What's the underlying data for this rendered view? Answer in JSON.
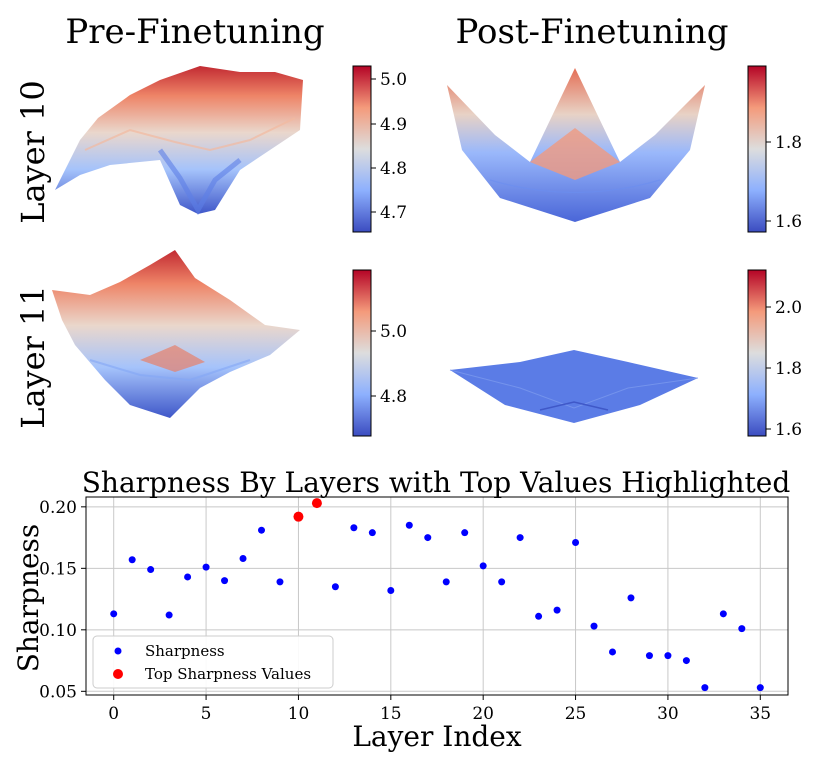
{
  "top": {
    "col_titles": [
      "Pre-Finetuning",
      "Post-Finetuning"
    ],
    "row_labels": [
      "Layer 10",
      "Layer 11"
    ],
    "colorbars": [
      {
        "ticks": [
          "5.0",
          "4.9",
          "4.8",
          "4.7"
        ]
      },
      {
        "ticks": [
          "1.8",
          "1.6"
        ]
      },
      {
        "ticks": [
          "5.0",
          "4.8"
        ]
      },
      {
        "ticks": [
          "2.0",
          "1.8",
          "1.6"
        ]
      }
    ],
    "colors": {
      "low": "#3b4cc0",
      "mid": "#dddddd",
      "high": "#b40426"
    }
  },
  "chart_data": {
    "type": "scatter",
    "title": "Sharpness By Layers with Top Values Highlighted",
    "xlabel": "Layer Index",
    "ylabel": "Sharpness",
    "xlim": [
      -1.5,
      36.5
    ],
    "ylim": [
      0.047,
      0.208
    ],
    "xticks": [
      0,
      5,
      10,
      15,
      20,
      25,
      30,
      35
    ],
    "yticks": [
      0.05,
      0.1,
      0.15,
      0.2
    ],
    "ytick_labels": [
      "0.05",
      "0.10",
      "0.15",
      "0.20"
    ],
    "grid": true,
    "legend_position": "lower-left",
    "series": [
      {
        "name": "Sharpness",
        "color": "#0000ff",
        "x": [
          0,
          1,
          2,
          3,
          4,
          5,
          6,
          7,
          8,
          9,
          12,
          13,
          14,
          15,
          16,
          17,
          18,
          19,
          20,
          21,
          22,
          23,
          24,
          25,
          26,
          27,
          28,
          29,
          30,
          31,
          32,
          33,
          34,
          35
        ],
        "y": [
          0.113,
          0.157,
          0.149,
          0.112,
          0.143,
          0.151,
          0.14,
          0.158,
          0.181,
          0.139,
          0.135,
          0.183,
          0.179,
          0.132,
          0.185,
          0.175,
          0.139,
          0.179,
          0.152,
          0.139,
          0.175,
          0.111,
          0.116,
          0.171,
          0.103,
          0.082,
          0.126,
          0.079,
          0.079,
          0.075,
          0.053,
          0.113,
          0.101,
          0.053
        ]
      },
      {
        "name": "Top Sharpness Values",
        "color": "#ff0000",
        "x": [
          10,
          11
        ],
        "y": [
          0.192,
          0.203
        ]
      }
    ]
  }
}
